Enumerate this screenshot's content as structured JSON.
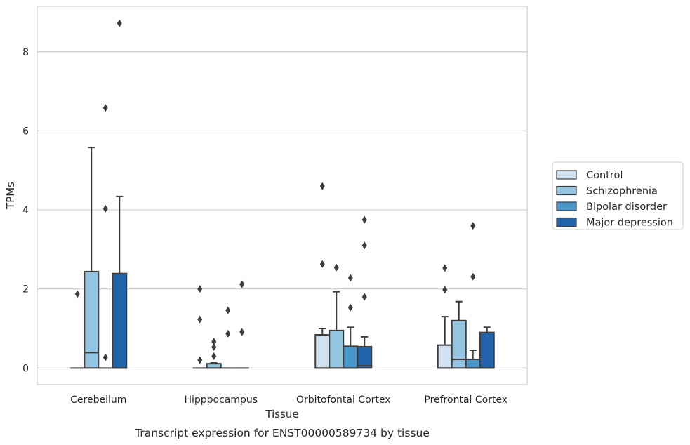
{
  "chart_data": {
    "type": "box",
    "caption": "Transcript expression for ENST00000589734 by tissue",
    "xlabel": "Tissue",
    "ylabel": "TPMs",
    "ylim": [
      -0.42,
      9.15
    ],
    "yticks": [
      0,
      2,
      4,
      6,
      8
    ],
    "grid": "horizontal",
    "legend_position": "right",
    "categories": [
      "Cerebellum",
      "Hipppocampus",
      "Orbitofontal Cortex",
      "Prefrontal Cortex"
    ],
    "series": [
      {
        "name": "Control",
        "color": "#d0e1f2",
        "boxes": [
          {
            "q1": 0,
            "median": 0,
            "q3": 0,
            "whisker_low": 0,
            "whisker_high": 0,
            "outliers": [
              1.87
            ]
          },
          {
            "q1": 0,
            "median": 0,
            "q3": 0,
            "whisker_low": 0,
            "whisker_high": 0,
            "outliers": [
              2.0,
              1.23,
              0.2
            ]
          },
          {
            "q1": 0,
            "median": 0,
            "q3": 0.84,
            "whisker_low": 0,
            "whisker_high": 1.0,
            "outliers": [
              4.6,
              2.63
            ]
          },
          {
            "q1": 0,
            "median": 0,
            "q3": 0.58,
            "whisker_low": 0,
            "whisker_high": 1.3,
            "outliers": [
              2.53,
              1.98
            ]
          }
        ]
      },
      {
        "name": "Schizophrenia",
        "color": "#94c4df",
        "boxes": [
          {
            "q1": 0,
            "median": 0.39,
            "q3": 2.44,
            "whisker_low": 0,
            "whisker_high": 5.58,
            "outliers": []
          },
          {
            "q1": 0,
            "median": 0,
            "q3": 0.11,
            "whisker_low": 0,
            "whisker_high": 0.13,
            "outliers": [
              0.67,
              0.53,
              0.3
            ]
          },
          {
            "q1": 0,
            "median": 0,
            "q3": 0.95,
            "whisker_low": 0,
            "whisker_high": 1.93,
            "outliers": [
              2.54
            ]
          },
          {
            "q1": 0,
            "median": 0.22,
            "q3": 1.2,
            "whisker_low": 0,
            "whisker_high": 1.68,
            "outliers": []
          }
        ]
      },
      {
        "name": "Bipolar disorder",
        "color": "#4a98c9",
        "boxes": [
          {
            "q1": 0,
            "median": 0,
            "q3": 0,
            "whisker_low": 0,
            "whisker_high": 0,
            "outliers": [
              6.58,
              4.03,
              0.27
            ]
          },
          {
            "q1": 0,
            "median": 0,
            "q3": 0,
            "whisker_low": 0,
            "whisker_high": 0,
            "outliers": [
              1.46,
              0.87
            ]
          },
          {
            "q1": 0,
            "median": 0,
            "q3": 0.55,
            "whisker_low": 0,
            "whisker_high": 1.03,
            "outliers": [
              2.28,
              1.53
            ]
          },
          {
            "q1": 0,
            "median": 0,
            "q3": 0.22,
            "whisker_low": 0,
            "whisker_high": 0.45,
            "outliers": [
              3.6,
              2.31
            ]
          }
        ]
      },
      {
        "name": "Major depression",
        "color": "#2163aa",
        "boxes": [
          {
            "q1": 0,
            "median": 0,
            "q3": 2.39,
            "whisker_low": 0,
            "whisker_high": 4.34,
            "outliers": [
              8.72
            ]
          },
          {
            "q1": 0,
            "median": 0,
            "q3": 0,
            "whisker_low": 0,
            "whisker_high": 0,
            "outliers": [
              2.12,
              0.91
            ]
          },
          {
            "q1": 0,
            "median": 0.06,
            "q3": 0.54,
            "whisker_low": 0,
            "whisker_high": 0.79,
            "outliers": [
              3.75,
              3.1,
              1.8
            ]
          },
          {
            "q1": 0,
            "median": 0,
            "q3": 0.9,
            "whisker_low": 0,
            "whisker_high": 1.03,
            "outliers": []
          }
        ]
      }
    ]
  }
}
